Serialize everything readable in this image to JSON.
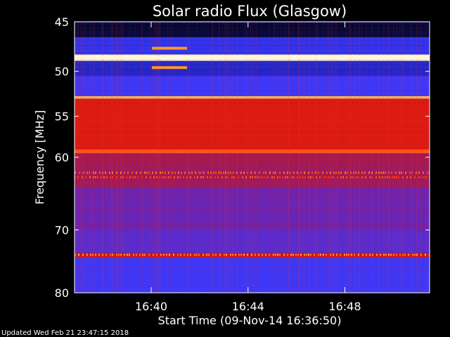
{
  "chart_data": {
    "type": "heatmap",
    "title": "Solar radio Flux (Glasgow)",
    "ylabel": "Frequency [MHz]",
    "xlabel": "Start Time (09-Nov-14 16:36:50)",
    "footer": "Updated Wed Feb 21 23:47:15 2018",
    "y_scale": "log",
    "y_reversed": true,
    "ylim": [
      45,
      80
    ],
    "y_ticks": [
      {
        "value": 45,
        "label": "45"
      },
      {
        "value": 50,
        "label": "50"
      },
      {
        "value": 55,
        "label": "55"
      },
      {
        "value": 60,
        "label": "60"
      },
      {
        "value": 70,
        "label": "70"
      },
      {
        "value": 80,
        "label": "80"
      }
    ],
    "x_range_minutes": [
      16.6,
      16.8
    ],
    "xlim": [
      "16:36:50",
      "16:51:30"
    ],
    "x_ticks": [
      {
        "value": "16:40",
        "label": "16:40"
      },
      {
        "value": "16:44",
        "label": "16:44"
      },
      {
        "value": "16:48",
        "label": "16:48"
      }
    ],
    "colormap": [
      "#000000",
      "#1a1aa6",
      "#3a3aff",
      "#7a1f9c",
      "#c81414",
      "#ff2a10",
      "#ff8a20",
      "#fff4c0"
    ],
    "bands": [
      {
        "f1": 45.0,
        "f2": 46.5,
        "level": 0.05
      },
      {
        "f1": 46.5,
        "f2": 48.2,
        "level": 0.25
      },
      {
        "f1": 48.2,
        "f2": 48.9,
        "level": 1.0
      },
      {
        "f1": 48.9,
        "f2": 50.5,
        "level": 0.2
      },
      {
        "f1": 50.5,
        "f2": 52.7,
        "level": 0.3
      },
      {
        "f1": 52.7,
        "f2": 53.0,
        "level": 0.9
      },
      {
        "f1": 53.0,
        "f2": 59.0,
        "level": 0.62
      },
      {
        "f1": 59.0,
        "f2": 59.5,
        "level": 0.78
      },
      {
        "f1": 59.5,
        "f2": 64.0,
        "level": 0.5
      },
      {
        "f1": 64.0,
        "f2": 70.0,
        "level": 0.4
      },
      {
        "f1": 70.0,
        "f2": 73.5,
        "level": 0.36
      },
      {
        "f1": 73.5,
        "f2": 74.2,
        "level": 0.58
      },
      {
        "f1": 74.2,
        "f2": 80.0,
        "level": 0.3
      }
    ]
  }
}
